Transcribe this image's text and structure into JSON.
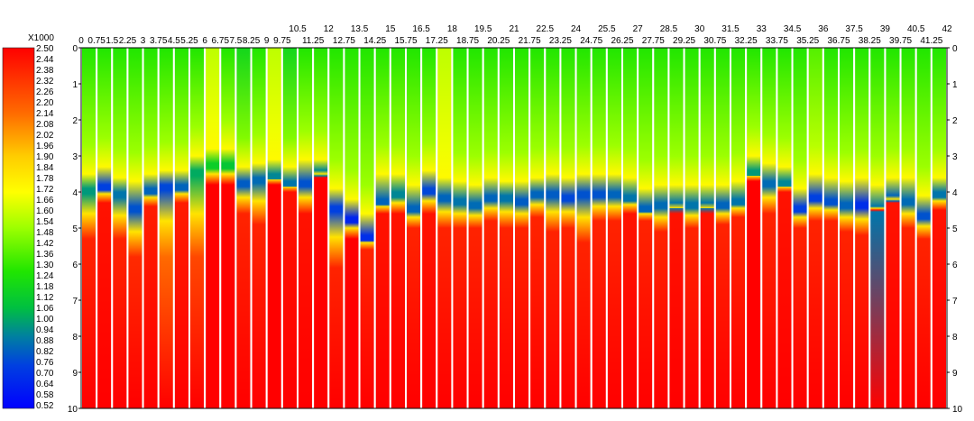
{
  "chart_data": {
    "type": "heatmap",
    "colorbar": {
      "multiplier_label": "X1000",
      "labels": [
        "2.50",
        "2.44",
        "2.38",
        "2.32",
        "2.26",
        "2.20",
        "2.14",
        "2.08",
        "2.02",
        "1.96",
        "1.90",
        "1.84",
        "1.78",
        "1.72",
        "1.66",
        "1.60",
        "1.54",
        "1.48",
        "1.42",
        "1.36",
        "1.30",
        "1.24",
        "1.18",
        "1.12",
        "1.06",
        "1.00",
        "0.94",
        "0.88",
        "0.82",
        "0.76",
        "0.70",
        "0.64",
        "0.58",
        "0.52"
      ],
      "min": 0.52,
      "max": 2.5
    },
    "x_ticks_row1": [
      "10.5",
      "12",
      "13.5",
      "15",
      "16.5",
      "18",
      "19.5",
      "21",
      "22.5",
      "24",
      "25.5",
      "27",
      "28.5",
      "30",
      "31.5",
      "33",
      "34.5",
      "36",
      "37.5",
      "39",
      "40.5",
      "42"
    ],
    "x_ticks_row2": [
      "0",
      "0.75",
      "1.5",
      "2.25",
      "3",
      "3.75",
      "4.5",
      "5.25",
      "6",
      "6.75",
      "7.5",
      "8.25",
      "9",
      "9.75",
      "11.25",
      "12.75",
      "14.25",
      "15.75",
      "17.25",
      "18.75",
      "20.25",
      "21.75",
      "23.25",
      "24.75",
      "26.25",
      "27.75",
      "29.25",
      "30.75",
      "32.25",
      "33.75",
      "35.25",
      "36.75",
      "38.25",
      "39.75",
      "41.25"
    ],
    "y_ticks": [
      "0",
      "1",
      "2",
      "3",
      "4",
      "5",
      "6",
      "7",
      "8",
      "9",
      "10"
    ],
    "y_range": [
      0,
      10
    ],
    "x_range": [
      0,
      42
    ],
    "columns": [
      {
        "x": 0,
        "top": 1.3,
        "mid_depth": 3.9,
        "low": 0.95,
        "low_depth": 3.9,
        "high": 2.4,
        "high_depth": 5.3
      },
      {
        "x": 0.75,
        "top": 1.3,
        "mid_depth": 3.7,
        "low": 0.7,
        "low_depth": 3.8,
        "high": 2.45,
        "high_depth": 4.3
      },
      {
        "x": 1.5,
        "top": 1.3,
        "mid_depth": 4.0,
        "low": 0.85,
        "low_depth": 4.0,
        "high": 2.4,
        "high_depth": 5.3
      },
      {
        "x": 2.25,
        "top": 1.3,
        "mid_depth": 4.1,
        "low": 0.75,
        "low_depth": 4.4,
        "high": 2.38,
        "high_depth": 5.8
      },
      {
        "x": 3,
        "top": 1.3,
        "mid_depth": 3.9,
        "low": 0.8,
        "low_depth": 3.9,
        "high": 2.42,
        "high_depth": 4.4
      },
      {
        "x": 3.75,
        "top": 1.3,
        "mid_depth": 3.8,
        "low": 0.72,
        "low_depth": 3.8,
        "high": 2.2,
        "high_depth": 5.8
      },
      {
        "x": 4.5,
        "top": 1.3,
        "mid_depth": 3.8,
        "low": 0.8,
        "low_depth": 3.8,
        "high": 2.42,
        "high_depth": 4.3
      },
      {
        "x": 5.25,
        "top": 1.3,
        "mid_depth": 3.4,
        "low": 1.0,
        "low_depth": 3.4,
        "high": 2.3,
        "high_depth": 5.8
      },
      {
        "x": 6,
        "top": 1.6,
        "mid_depth": 3.2,
        "low": 1.15,
        "low_depth": 3.2,
        "high": 2.5,
        "high_depth": 3.8
      },
      {
        "x": 6.75,
        "top": 1.3,
        "mid_depth": 3.2,
        "low": 1.1,
        "low_depth": 3.2,
        "high": 2.5,
        "high_depth": 3.8
      },
      {
        "x": 7.5,
        "top": 1.2,
        "mid_depth": 3.7,
        "low": 0.78,
        "low_depth": 3.7,
        "high": 2.4,
        "high_depth": 4.6
      },
      {
        "x": 8.25,
        "top": 1.3,
        "mid_depth": 3.6,
        "low": 0.82,
        "low_depth": 3.6,
        "high": 2.4,
        "high_depth": 4.9
      },
      {
        "x": 9,
        "top": 1.6,
        "mid_depth": 3.5,
        "low": 0.9,
        "low_depth": 3.5,
        "high": 2.5,
        "high_depth": 3.8
      },
      {
        "x": 9.75,
        "top": 1.2,
        "mid_depth": 3.7,
        "low": 0.85,
        "low_depth": 3.7,
        "high": 2.45,
        "high_depth": 4.0
      },
      {
        "x": 10.5,
        "top": 1.3,
        "mid_depth": 3.5,
        "low": 0.75,
        "low_depth": 3.7,
        "high": 2.45,
        "high_depth": 4.6
      },
      {
        "x": 11.25,
        "top": 1.3,
        "mid_depth": 3.5,
        "low": 0.9,
        "low_depth": 3.4,
        "high": 2.5,
        "high_depth": 3.6
      },
      {
        "x": 12,
        "top": 1.3,
        "mid_depth": 4.3,
        "low": 0.7,
        "low_depth": 4.4,
        "high": 2.4,
        "high_depth": 6.1
      },
      {
        "x": 12.75,
        "top": 1.3,
        "mid_depth": 4.6,
        "low": 0.62,
        "low_depth": 4.7,
        "high": 2.5,
        "high_depth": 5.3
      },
      {
        "x": 13.5,
        "top": 1.3,
        "mid_depth": 5.0,
        "low": 0.65,
        "low_depth": 5.2,
        "high": 2.4,
        "high_depth": 5.6
      },
      {
        "x": 14.25,
        "top": 1.3,
        "mid_depth": 3.9,
        "low": 0.8,
        "low_depth": 4.2,
        "high": 2.45,
        "high_depth": 4.6
      },
      {
        "x": 15,
        "top": 1.3,
        "mid_depth": 3.9,
        "low": 0.9,
        "low_depth": 4.0,
        "high": 2.45,
        "high_depth": 4.6
      },
      {
        "x": 15.75,
        "top": 1.3,
        "mid_depth": 4.2,
        "low": 0.8,
        "low_depth": 4.4,
        "high": 2.4,
        "high_depth": 5.0
      },
      {
        "x": 16.5,
        "top": 1.3,
        "mid_depth": 3.8,
        "low": 0.72,
        "low_depth": 3.9,
        "high": 2.45,
        "high_depth": 4.6
      },
      {
        "x": 17.25,
        "top": 1.6,
        "mid_depth": 4.0,
        "low": 0.8,
        "low_depth": 4.1,
        "high": 2.4,
        "high_depth": 5.0
      },
      {
        "x": 18,
        "top": 1.3,
        "mid_depth": 4.1,
        "low": 0.85,
        "low_depth": 4.2,
        "high": 2.4,
        "high_depth": 5.0
      },
      {
        "x": 18.75,
        "top": 1.3,
        "mid_depth": 4.2,
        "low": 0.82,
        "low_depth": 4.3,
        "high": 2.4,
        "high_depth": 5.0
      },
      {
        "x": 19.5,
        "top": 1.3,
        "mid_depth": 4.0,
        "low": 0.8,
        "low_depth": 4.1,
        "high": 2.4,
        "high_depth": 4.8
      },
      {
        "x": 20.25,
        "top": 1.3,
        "mid_depth": 4.1,
        "low": 0.85,
        "low_depth": 4.1,
        "high": 2.4,
        "high_depth": 5.0
      },
      {
        "x": 21,
        "top": 1.3,
        "mid_depth": 4.1,
        "low": 0.78,
        "low_depth": 4.2,
        "high": 2.4,
        "high_depth": 5.0
      },
      {
        "x": 21.75,
        "top": 1.3,
        "mid_depth": 4.0,
        "low": 0.8,
        "low_depth": 4.0,
        "high": 2.4,
        "high_depth": 4.7
      },
      {
        "x": 22.5,
        "top": 1.3,
        "mid_depth": 3.9,
        "low": 0.78,
        "low_depth": 4.0,
        "high": 2.4,
        "high_depth": 5.1
      },
      {
        "x": 23.25,
        "top": 1.3,
        "mid_depth": 4.0,
        "low": 0.72,
        "low_depth": 4.1,
        "high": 2.4,
        "high_depth": 5.0
      },
      {
        "x": 24,
        "top": 1.3,
        "mid_depth": 3.9,
        "low": 0.75,
        "low_depth": 4.0,
        "high": 2.4,
        "high_depth": 5.4
      },
      {
        "x": 24.75,
        "top": 1.3,
        "mid_depth": 3.9,
        "low": 0.75,
        "low_depth": 4.0,
        "high": 2.4,
        "high_depth": 4.8
      },
      {
        "x": 25.5,
        "top": 1.3,
        "mid_depth": 3.9,
        "low": 0.8,
        "low_depth": 4.0,
        "high": 2.4,
        "high_depth": 4.8
      },
      {
        "x": 26.25,
        "top": 1.3,
        "mid_depth": 4.0,
        "low": 0.85,
        "low_depth": 4.1,
        "high": 2.45,
        "high_depth": 4.6
      },
      {
        "x": 27,
        "top": 1.3,
        "mid_depth": 4.3,
        "low": 0.8,
        "low_depth": 4.4,
        "high": 2.4,
        "high_depth": 4.8
      },
      {
        "x": 27.75,
        "top": 1.3,
        "mid_depth": 4.2,
        "low": 0.82,
        "low_depth": 4.3,
        "high": 2.4,
        "high_depth": 5.1
      },
      {
        "x": 28.5,
        "top": 1.3,
        "mid_depth": 4.2,
        "low": 0.85,
        "low_depth": 4.3,
        "high": 2.45,
        "high_depth": 4.6
      },
      {
        "x": 29.25,
        "top": 1.3,
        "mid_depth": 4.2,
        "low": 0.85,
        "low_depth": 4.3,
        "high": 2.4,
        "high_depth": 5.0
      },
      {
        "x": 30,
        "top": 1.3,
        "mid_depth": 4.2,
        "low": 0.85,
        "low_depth": 4.3,
        "high": 2.45,
        "high_depth": 4.6
      },
      {
        "x": 30.75,
        "top": 1.3,
        "mid_depth": 4.2,
        "low": 0.8,
        "low_depth": 4.3,
        "high": 2.4,
        "high_depth": 4.9
      },
      {
        "x": 31.5,
        "top": 1.3,
        "mid_depth": 4.1,
        "low": 0.85,
        "low_depth": 4.2,
        "high": 2.4,
        "high_depth": 4.7
      },
      {
        "x": 32.25,
        "top": 1.3,
        "mid_depth": 3.4,
        "low": 0.95,
        "low_depth": 3.4,
        "high": 2.5,
        "high_depth": 3.7
      },
      {
        "x": 33,
        "top": 1.3,
        "mid_depth": 3.6,
        "low": 0.82,
        "low_depth": 3.7,
        "high": 2.4,
        "high_depth": 4.6
      },
      {
        "x": 33.75,
        "top": 1.3,
        "mid_depth": 3.7,
        "low": 0.9,
        "low_depth": 3.7,
        "high": 2.45,
        "high_depth": 4.0
      },
      {
        "x": 34.5,
        "top": 1.3,
        "mid_depth": 4.3,
        "low": 0.7,
        "low_depth": 4.4,
        "high": 2.4,
        "high_depth": 5.0
      },
      {
        "x": 35.25,
        "top": 1.4,
        "mid_depth": 3.9,
        "low": 0.7,
        "low_depth": 4.1,
        "high": 2.4,
        "high_depth": 4.8
      },
      {
        "x": 36,
        "top": 1.3,
        "mid_depth": 4.0,
        "low": 0.75,
        "low_depth": 4.2,
        "high": 2.4,
        "high_depth": 4.8
      },
      {
        "x": 36.75,
        "top": 1.3,
        "mid_depth": 4.1,
        "low": 0.8,
        "low_depth": 4.3,
        "high": 2.4,
        "high_depth": 5.1
      },
      {
        "x": 37.5,
        "top": 1.3,
        "mid_depth": 4.0,
        "low": 0.65,
        "low_depth": 4.3,
        "high": 2.4,
        "high_depth": 5.2
      },
      {
        "x": 38.25,
        "top": 1.3,
        "mid_depth": 4.2,
        "low": 0.85,
        "low_depth": 4.4,
        "high": 2.45,
        "high_depth": 4.5
      },
      {
        "x": 39,
        "top": 1.3,
        "mid_depth": 4.0,
        "low": 0.8,
        "low_depth": 4.1,
        "high": 2.45,
        "high_depth": 4.3
      },
      {
        "x": 39.75,
        "top": 1.3,
        "mid_depth": 4.0,
        "low": 0.82,
        "low_depth": 4.2,
        "high": 2.4,
        "high_depth": 5.0
      },
      {
        "x": 40.5,
        "top": 1.3,
        "mid_depth": 4.5,
        "low": 0.75,
        "low_depth": 4.6,
        "high": 2.4,
        "high_depth": 5.3
      },
      {
        "x": 41.25,
        "top": 1.3,
        "mid_depth": 4.0,
        "low": 0.85,
        "low_depth": 4.0,
        "high": 2.45,
        "high_depth": 4.5
      }
    ]
  }
}
